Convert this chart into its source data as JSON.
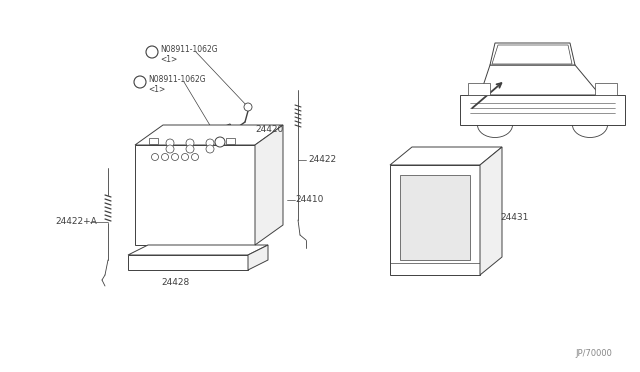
{
  "bg_color": "#ffffff",
  "lc": "#404040",
  "tc": "#404040",
  "watermark": "JP/70000",
  "pn_24420": "24420",
  "pn_24422": "24422",
  "pn_24422a": "24422+A",
  "pn_24410": "24410",
  "pn_24428": "24428",
  "pn_24431": "24431",
  "pn_n1": "N08911-1062G",
  "pn_n1b": "<1>",
  "pn_n2": "N08911-1062G",
  "pn_n2b": "<1>"
}
